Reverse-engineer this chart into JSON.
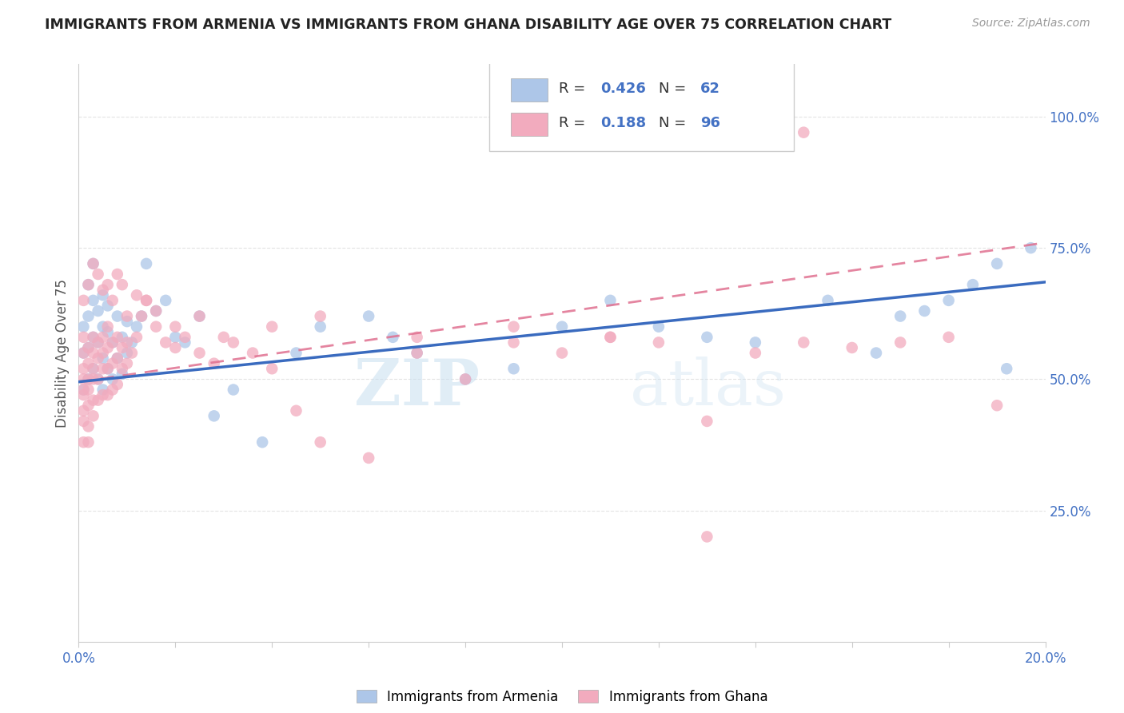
{
  "title": "IMMIGRANTS FROM ARMENIA VS IMMIGRANTS FROM GHANA DISABILITY AGE OVER 75 CORRELATION CHART",
  "source": "Source: ZipAtlas.com",
  "ylabel": "Disability Age Over 75",
  "x_min": 0.0,
  "x_max": 0.2,
  "y_min": 0.0,
  "y_max": 1.1,
  "x_ticks": [
    0.0,
    0.02,
    0.04,
    0.06,
    0.08,
    0.1,
    0.12,
    0.14,
    0.16,
    0.18,
    0.2
  ],
  "x_tick_labels_show": [
    "0.0%",
    "20.0%"
  ],
  "y_tick_labels_right": [
    "25.0%",
    "50.0%",
    "75.0%",
    "100.0%"
  ],
  "y_tick_positions_right": [
    0.25,
    0.5,
    0.75,
    1.0
  ],
  "armenia_R": "0.426",
  "armenia_N": "62",
  "ghana_R": "0.188",
  "ghana_N": "96",
  "armenia_color": "#adc6e8",
  "ghana_color": "#f2abbe",
  "trendline_armenia_color": "#3a6bbf",
  "trendline_ghana_color": "#e07090",
  "legend_armenia_label": "Immigrants from Armenia",
  "legend_ghana_label": "Immigrants from Ghana",
  "watermark_zip": "ZIP",
  "watermark_atlas": "atlas",
  "background_color": "#ffffff",
  "grid_color": "#d8d8d8",
  "arm_trendline": [
    0.495,
    0.685
  ],
  "gha_trendline": [
    0.495,
    0.76
  ],
  "arm_x": [
    0.001,
    0.001,
    0.001,
    0.002,
    0.002,
    0.002,
    0.002,
    0.003,
    0.003,
    0.003,
    0.003,
    0.004,
    0.004,
    0.004,
    0.005,
    0.005,
    0.005,
    0.005,
    0.006,
    0.006,
    0.006,
    0.007,
    0.007,
    0.008,
    0.008,
    0.009,
    0.009,
    0.01,
    0.01,
    0.011,
    0.012,
    0.013,
    0.014,
    0.016,
    0.018,
    0.02,
    0.022,
    0.025,
    0.028,
    0.032,
    0.038,
    0.045,
    0.05,
    0.06,
    0.065,
    0.07,
    0.08,
    0.09,
    0.1,
    0.11,
    0.12,
    0.13,
    0.14,
    0.155,
    0.165,
    0.17,
    0.175,
    0.18,
    0.185,
    0.19,
    0.192,
    0.197
  ],
  "arm_y": [
    0.48,
    0.55,
    0.6,
    0.5,
    0.56,
    0.62,
    0.68,
    0.52,
    0.58,
    0.65,
    0.72,
    0.5,
    0.57,
    0.63,
    0.48,
    0.54,
    0.6,
    0.66,
    0.52,
    0.59,
    0.64,
    0.5,
    0.57,
    0.54,
    0.62,
    0.51,
    0.58,
    0.55,
    0.61,
    0.57,
    0.6,
    0.62,
    0.72,
    0.63,
    0.65,
    0.58,
    0.57,
    0.62,
    0.43,
    0.48,
    0.38,
    0.55,
    0.6,
    0.62,
    0.58,
    0.55,
    0.5,
    0.52,
    0.6,
    0.65,
    0.6,
    0.58,
    0.57,
    0.65,
    0.55,
    0.62,
    0.63,
    0.65,
    0.68,
    0.72,
    0.52,
    0.75
  ],
  "gha_x": [
    0.001,
    0.001,
    0.001,
    0.001,
    0.001,
    0.001,
    0.001,
    0.001,
    0.001,
    0.002,
    0.002,
    0.002,
    0.002,
    0.002,
    0.002,
    0.002,
    0.003,
    0.003,
    0.003,
    0.003,
    0.003,
    0.003,
    0.004,
    0.004,
    0.004,
    0.004,
    0.005,
    0.005,
    0.005,
    0.005,
    0.006,
    0.006,
    0.006,
    0.006,
    0.007,
    0.007,
    0.007,
    0.008,
    0.008,
    0.008,
    0.009,
    0.009,
    0.01,
    0.01,
    0.011,
    0.012,
    0.013,
    0.014,
    0.016,
    0.018,
    0.02,
    0.022,
    0.025,
    0.028,
    0.032,
    0.036,
    0.04,
    0.045,
    0.05,
    0.06,
    0.07,
    0.08,
    0.09,
    0.1,
    0.11,
    0.12,
    0.13,
    0.14,
    0.15,
    0.16,
    0.17,
    0.18,
    0.19,
    0.001,
    0.002,
    0.003,
    0.004,
    0.005,
    0.006,
    0.007,
    0.008,
    0.009,
    0.01,
    0.012,
    0.014,
    0.016,
    0.02,
    0.025,
    0.03,
    0.04,
    0.05,
    0.07,
    0.09,
    0.11,
    0.13,
    0.15
  ],
  "gha_y": [
    0.5,
    0.52,
    0.55,
    0.58,
    0.47,
    0.44,
    0.48,
    0.42,
    0.38,
    0.5,
    0.53,
    0.56,
    0.48,
    0.45,
    0.41,
    0.38,
    0.52,
    0.55,
    0.58,
    0.5,
    0.46,
    0.43,
    0.54,
    0.57,
    0.5,
    0.46,
    0.55,
    0.58,
    0.52,
    0.47,
    0.56,
    0.6,
    0.52,
    0.47,
    0.57,
    0.53,
    0.48,
    0.58,
    0.54,
    0.49,
    0.56,
    0.52,
    0.57,
    0.53,
    0.55,
    0.58,
    0.62,
    0.65,
    0.6,
    0.57,
    0.56,
    0.58,
    0.55,
    0.53,
    0.57,
    0.55,
    0.52,
    0.44,
    0.38,
    0.35,
    0.55,
    0.5,
    0.57,
    0.55,
    0.58,
    0.57,
    0.42,
    0.55,
    0.57,
    0.56,
    0.57,
    0.58,
    0.45,
    0.65,
    0.68,
    0.72,
    0.7,
    0.67,
    0.68,
    0.65,
    0.7,
    0.68,
    0.62,
    0.66,
    0.65,
    0.63,
    0.6,
    0.62,
    0.58,
    0.6,
    0.62,
    0.58,
    0.6,
    0.58,
    0.2,
    0.97
  ]
}
